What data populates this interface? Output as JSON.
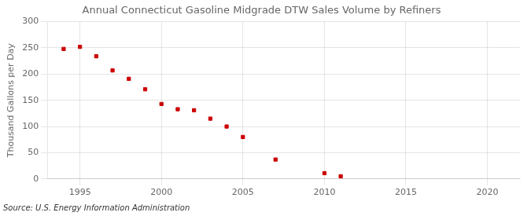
{
  "chart_data": {
    "type": "scatter",
    "title": "Annual Connecticut Gasoline Midgrade DTW Sales Volume by Refiners",
    "y_label": "Thousand Gallons per Day",
    "source": "Source: U.S. Energy Information Administration",
    "x": [
      1994,
      1995,
      1996,
      1997,
      1998,
      1999,
      2000,
      2001,
      2002,
      2003,
      2004,
      2005,
      2007,
      2010,
      2011
    ],
    "values": [
      248,
      252,
      234,
      207,
      191,
      171,
      143,
      133,
      131,
      115,
      100,
      80,
      37,
      11,
      5
    ],
    "color": "#cc0000",
    "marker": "square",
    "xlim": [
      1993,
      2022
    ],
    "xticks": [
      1995,
      2000,
      2005,
      2010,
      2015,
      2020
    ],
    "ylim": [
      0,
      300
    ],
    "yticks": [
      0,
      50,
      100,
      150,
      200,
      250,
      300
    ],
    "grid": true
  }
}
